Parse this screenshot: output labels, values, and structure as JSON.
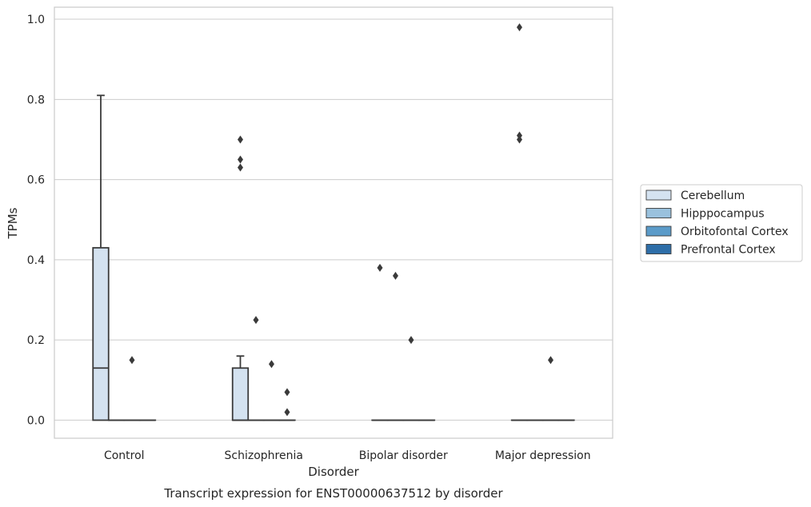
{
  "chart_data": {
    "type": "box",
    "title": "",
    "caption": "Transcript expression for ENST00000637512 by disorder",
    "xlabel": "Disorder",
    "ylabel": "TPMs",
    "ylim": [
      -0.045,
      1.03
    ],
    "yticks": [
      0.0,
      0.2,
      0.4,
      0.6,
      0.8,
      1.0
    ],
    "ytick_labels": [
      "0.0",
      "0.2",
      "0.4",
      "0.6",
      "0.8",
      "1.0"
    ],
    "categories": [
      "Control",
      "Schizophrenia",
      "Bipolar disorder",
      "Major depression"
    ],
    "grid": "horizontal",
    "legend_position": "right",
    "series": [
      {
        "name": "Cerebellum",
        "color": "#d4e2f0",
        "boxes": [
          {
            "q1": 0.0,
            "median": 0.13,
            "q3": 0.43,
            "whisker_low": 0.0,
            "whisker_high": 0.81,
            "outliers": []
          },
          {
            "q1": 0.0,
            "median": 0.0,
            "q3": 0.13,
            "whisker_low": 0.0,
            "whisker_high": 0.16,
            "outliers": [
              0.63,
              0.65,
              0.7
            ]
          },
          {
            "q1": 0.0,
            "median": 0.0,
            "q3": 0.0,
            "whisker_low": 0.0,
            "whisker_high": 0.0,
            "outliers": [
              0.38
            ]
          },
          {
            "q1": 0.0,
            "median": 0.0,
            "q3": 0.0,
            "whisker_low": 0.0,
            "whisker_high": 0.0,
            "outliers": [
              0.7,
              0.71,
              0.98
            ]
          }
        ]
      },
      {
        "name": "Hipppocampus",
        "color": "#9ac1dd",
        "boxes": [
          {
            "q1": 0.0,
            "median": 0.0,
            "q3": 0.0,
            "whisker_low": 0.0,
            "whisker_high": 0.0,
            "outliers": []
          },
          {
            "q1": 0.0,
            "median": 0.0,
            "q3": 0.0,
            "whisker_low": 0.0,
            "whisker_high": 0.0,
            "outliers": [
              0.25
            ]
          },
          {
            "q1": 0.0,
            "median": 0.0,
            "q3": 0.0,
            "whisker_low": 0.0,
            "whisker_high": 0.0,
            "outliers": [
              0.36
            ]
          },
          {
            "q1": 0.0,
            "median": 0.0,
            "q3": 0.0,
            "whisker_low": 0.0,
            "whisker_high": 0.0,
            "outliers": []
          }
        ]
      },
      {
        "name": "Orbitofontal Cortex",
        "color": "#5b9bc9",
        "boxes": [
          {
            "q1": 0.0,
            "median": 0.0,
            "q3": 0.0,
            "whisker_low": 0.0,
            "whisker_high": 0.0,
            "outliers": [
              0.15
            ]
          },
          {
            "q1": 0.0,
            "median": 0.0,
            "q3": 0.0,
            "whisker_low": 0.0,
            "whisker_high": 0.0,
            "outliers": [
              0.14
            ]
          },
          {
            "q1": 0.0,
            "median": 0.0,
            "q3": 0.0,
            "whisker_low": 0.0,
            "whisker_high": 0.0,
            "outliers": [
              0.2
            ]
          },
          {
            "q1": 0.0,
            "median": 0.0,
            "q3": 0.0,
            "whisker_low": 0.0,
            "whisker_high": 0.0,
            "outliers": [
              0.15
            ]
          }
        ]
      },
      {
        "name": "Prefrontal Cortex",
        "color": "#2e6ea8",
        "boxes": [
          {
            "q1": 0.0,
            "median": 0.0,
            "q3": 0.0,
            "whisker_low": 0.0,
            "whisker_high": 0.0,
            "outliers": []
          },
          {
            "q1": 0.0,
            "median": 0.0,
            "q3": 0.0,
            "whisker_low": 0.0,
            "whisker_high": 0.0,
            "outliers": [
              0.02,
              0.07
            ]
          },
          {
            "q1": 0.0,
            "median": 0.0,
            "q3": 0.0,
            "whisker_low": 0.0,
            "whisker_high": 0.0,
            "outliers": []
          },
          {
            "q1": 0.0,
            "median": 0.0,
            "q3": 0.0,
            "whisker_low": 0.0,
            "whisker_high": 0.0,
            "outliers": []
          }
        ]
      }
    ]
  }
}
